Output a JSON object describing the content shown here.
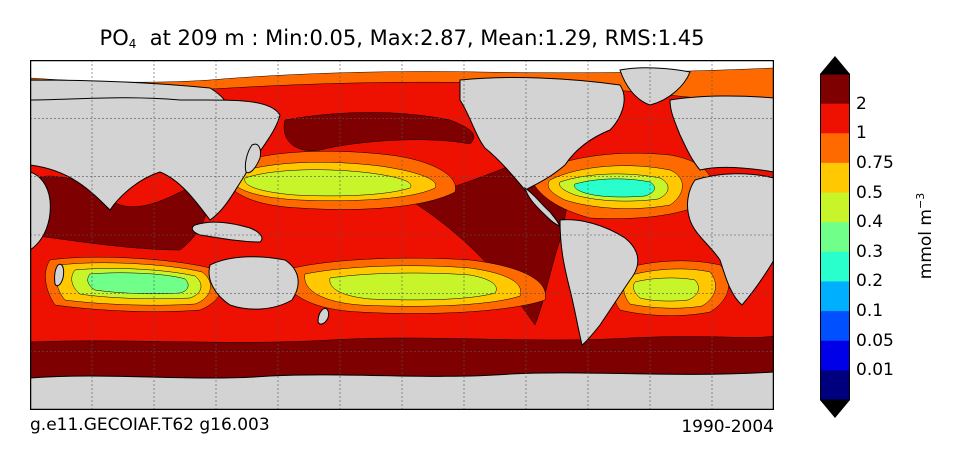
{
  "title": {
    "var_main": "PO",
    "var_sub": "4",
    "rest": "  at 209 m : Min:0.05, Max:2.87, Mean:1.29, RMS:1.45"
  },
  "caption_left": "g.e11.GECOIAF.T62 g16.003",
  "caption_right": "1990-2004",
  "colorbar": {
    "units_main": "mmol m",
    "units_sup": "−3",
    "ticks": [
      "2",
      "1",
      "0.75",
      "0.5",
      "0.4",
      "0.3",
      "0.2",
      "0.1",
      "0.05",
      "0.01"
    ],
    "colors_top_to_bottom": [
      "#7f0000",
      "#ee1000",
      "#ff6a00",
      "#ffc800",
      "#c8f52a",
      "#70ff88",
      "#28ffcc",
      "#00b0ff",
      "#0050ff",
      "#0000e8",
      "#00007f"
    ]
  },
  "map_colors": {
    "land": "#d3d3d3",
    "ice": "#ffffff",
    "c2": "#7f0000",
    "c1": "#ee1000",
    "c075": "#ff6a00",
    "c05": "#ffc800",
    "c04": "#c8f52a",
    "c03": "#70ff88",
    "c02": "#28ffcc"
  }
}
